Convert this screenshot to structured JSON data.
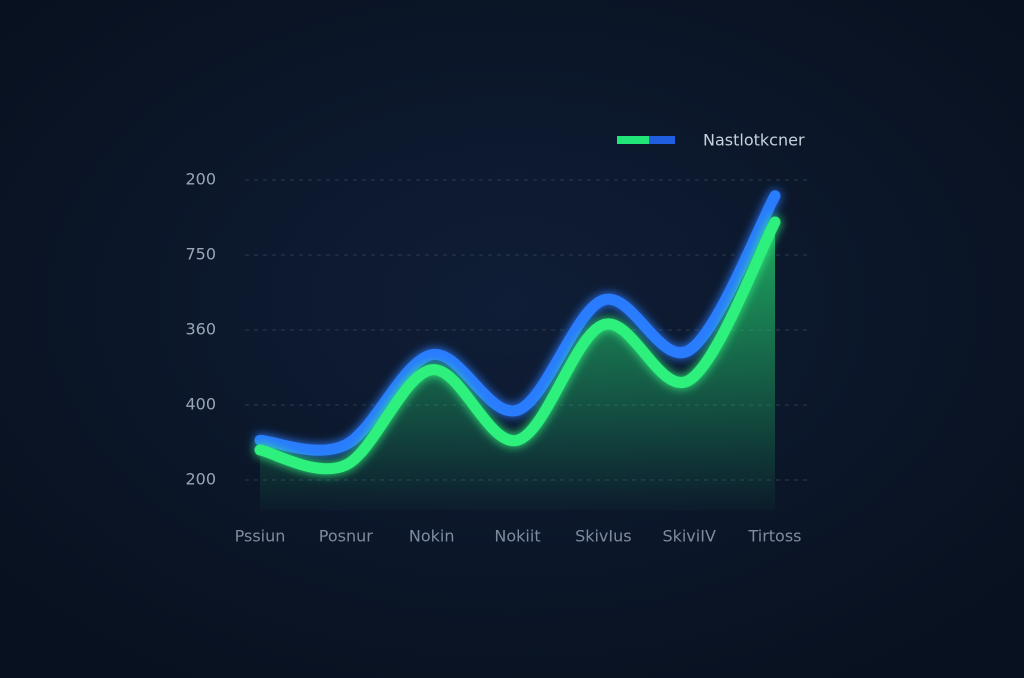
{
  "chart_data": {
    "type": "line",
    "legend": {
      "label": "Nastlotkcner",
      "colors": [
        "#22e57a",
        "#1f5fe0"
      ],
      "position": "top-right"
    },
    "categories": [
      "Pssiun",
      "Posnur",
      "Nokin",
      "Nokiit",
      "SkivIus",
      "SkiviIV",
      "Tirtoss"
    ],
    "series": [
      {
        "color": "#2a7bff",
        "values": [
          0.53,
          0.47,
          1.67,
          0.93,
          2.4,
          1.73,
          3.79
        ]
      },
      {
        "color": "#2ef07d",
        "values": [
          0.4,
          0.2,
          1.47,
          0.53,
          2.07,
          1.33,
          3.44
        ],
        "fill": true
      }
    ],
    "ylim": [
      -0.4,
      4
    ],
    "yticks": [
      {
        "value": 0,
        "label": "200"
      },
      {
        "value": 1,
        "label": "400"
      },
      {
        "value": 2,
        "label": "360"
      },
      {
        "value": 3,
        "label": "750"
      },
      {
        "value": 4,
        "label": "200"
      }
    ],
    "grid": true
  }
}
